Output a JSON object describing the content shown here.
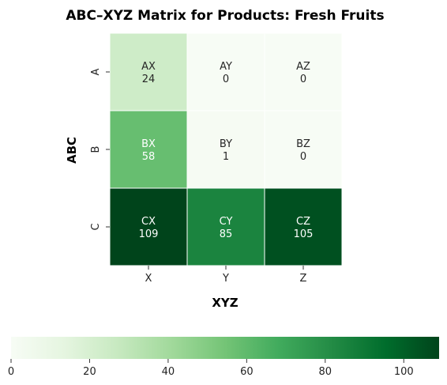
{
  "chart_data": {
    "type": "heatmap",
    "title": "ABC–XYZ Matrix for Products: Fresh Fruits",
    "xlabel": "XYZ",
    "ylabel": "ABC",
    "x_categories": [
      "X",
      "Y",
      "Z"
    ],
    "y_categories": [
      "A",
      "B",
      "C"
    ],
    "cells": [
      [
        {
          "label": "AX",
          "value": 24
        },
        {
          "label": "AY",
          "value": 0
        },
        {
          "label": "AZ",
          "value": 0
        }
      ],
      [
        {
          "label": "BX",
          "value": 58
        },
        {
          "label": "BY",
          "value": 1
        },
        {
          "label": "BZ",
          "value": 0
        }
      ],
      [
        {
          "label": "CX",
          "value": 109
        },
        {
          "label": "CY",
          "value": 85
        },
        {
          "label": "CZ",
          "value": 105
        }
      ]
    ],
    "colormap": "Greens",
    "colorbar": {
      "orientation": "horizontal",
      "placement": "bottom",
      "range": [
        0,
        109
      ],
      "ticks": [
        0,
        20,
        40,
        60,
        80,
        100
      ]
    }
  }
}
